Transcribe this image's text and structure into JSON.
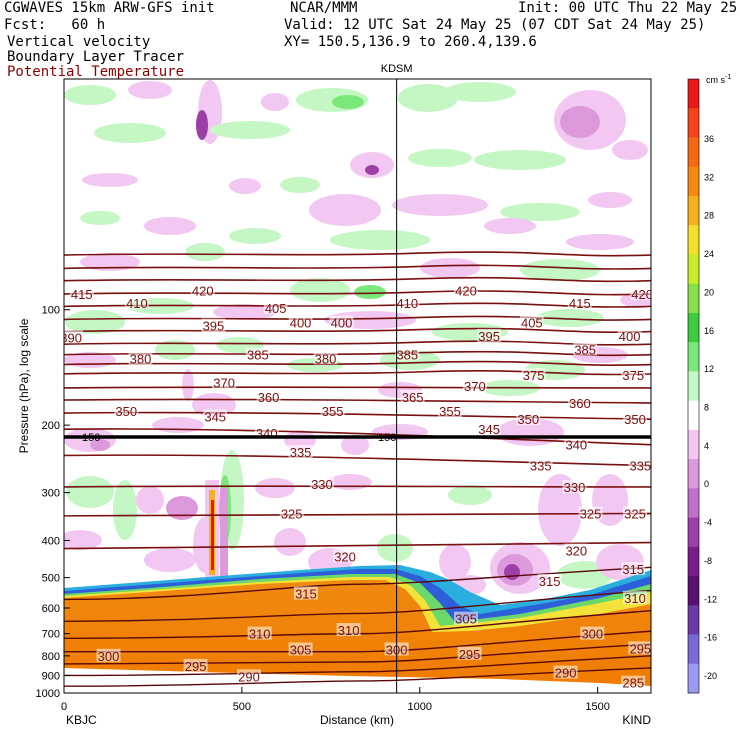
{
  "header": {
    "model": "CGWAVES 15km ARW-GFS init",
    "center": "NCAR/MMM",
    "init": "Init: 00 UTC Thu 22 May 25",
    "fcst": "Fcst:   60 h",
    "valid": "Valid: 12 UTC Sat 24 May 25 (07 CDT Sat 24 May 25)",
    "field1": "Vertical velocity",
    "xy": "XY= 150.5,136.9 to 260.4,139.6",
    "field2": "Boundary Layer Tracer",
    "field3": "Potential Temperature"
  },
  "chart_data": {
    "type": "heatmap",
    "title": "KDSM",
    "xlabel": "Distance (km)",
    "ylabel": "Pressure (hPa), log scale",
    "x_range": [
      0,
      1650
    ],
    "y_range_hpa": [
      1000,
      25
    ],
    "y_scale": "log",
    "x_ticks": [
      "0",
      "500",
      "1000",
      "1500"
    ],
    "y_ticks": [
      "100",
      "200",
      "300",
      "400",
      "500",
      "600",
      "700",
      "800",
      "900",
      "1000"
    ],
    "left_station": "KBJC",
    "right_station": "KIND",
    "marker_label": "KDSM",
    "marker_x_km": 935,
    "tropopause_label": "150",
    "colorbar": {
      "units": "cm s",
      "units_exp": "-1",
      "ticks": [
        "36",
        "32",
        "28",
        "24",
        "20",
        "16",
        "12",
        "8",
        "4",
        "0",
        "-4",
        "-8",
        "-12",
        "-16",
        "-20"
      ]
    },
    "theta_labels": [
      {
        "v": "415",
        "x": 50,
        "p": 91
      },
      {
        "v": "410",
        "x": 205,
        "p": 96
      },
      {
        "v": "420",
        "x": 390,
        "p": 89
      },
      {
        "v": "405",
        "x": 595,
        "p": 99
      },
      {
        "v": "410",
        "x": 965,
        "p": 96
      },
      {
        "v": "420",
        "x": 1130,
        "p": 89
      },
      {
        "v": "415",
        "x": 1450,
        "p": 96
      },
      {
        "v": "420",
        "x": 1625,
        "p": 91
      },
      {
        "v": "390",
        "x": 20,
        "p": 118
      },
      {
        "v": "395",
        "x": 420,
        "p": 110
      },
      {
        "v": "400",
        "x": 665,
        "p": 108
      },
      {
        "v": "400",
        "x": 780,
        "p": 108
      },
      {
        "v": "395",
        "x": 1195,
        "p": 117
      },
      {
        "v": "405",
        "x": 1315,
        "p": 108
      },
      {
        "v": "385",
        "x": 1465,
        "p": 127
      },
      {
        "v": "400",
        "x": 1590,
        "p": 117
      },
      {
        "v": "380",
        "x": 215,
        "p": 134
      },
      {
        "v": "385",
        "x": 545,
        "p": 131
      },
      {
        "v": "380",
        "x": 735,
        "p": 134
      },
      {
        "v": "385",
        "x": 965,
        "p": 131
      },
      {
        "v": "375",
        "x": 1320,
        "p": 148
      },
      {
        "v": "375",
        "x": 1600,
        "p": 148
      },
      {
        "v": "370",
        "x": 450,
        "p": 155
      },
      {
        "v": "370",
        "x": 1155,
        "p": 158
      },
      {
        "v": "360",
        "x": 575,
        "p": 169
      },
      {
        "v": "365",
        "x": 980,
        "p": 169
      },
      {
        "v": "360",
        "x": 1450,
        "p": 175
      },
      {
        "v": "350",
        "x": 175,
        "p": 184
      },
      {
        "v": "345",
        "x": 425,
        "p": 190
      },
      {
        "v": "355",
        "x": 755,
        "p": 184
      },
      {
        "v": "355",
        "x": 1085,
        "p": 184
      },
      {
        "v": "350",
        "x": 1305,
        "p": 193
      },
      {
        "v": "350",
        "x": 1605,
        "p": 193
      },
      {
        "v": "340",
        "x": 570,
        "p": 210
      },
      {
        "v": "345",
        "x": 1195,
        "p": 205
      },
      {
        "v": "340",
        "x": 1440,
        "p": 225
      },
      {
        "v": "335",
        "x": 665,
        "p": 235
      },
      {
        "v": "335",
        "x": 1340,
        "p": 255
      },
      {
        "v": "335",
        "x": 1620,
        "p": 255
      },
      {
        "v": "330",
        "x": 725,
        "p": 285
      },
      {
        "v": "330",
        "x": 1435,
        "p": 290
      },
      {
        "v": "325",
        "x": 640,
        "p": 340
      },
      {
        "v": "325",
        "x": 1480,
        "p": 340
      },
      {
        "v": "325",
        "x": 1605,
        "p": 340
      },
      {
        "v": "320",
        "x": 790,
        "p": 440
      },
      {
        "v": "320",
        "x": 1440,
        "p": 425
      },
      {
        "v": "315",
        "x": 680,
        "p": 550
      },
      {
        "v": "315",
        "x": 1365,
        "p": 510
      },
      {
        "v": "315",
        "x": 1600,
        "p": 475
      },
      {
        "v": "310",
        "x": 550,
        "p": 700
      },
      {
        "v": "310",
        "x": 800,
        "p": 685
      },
      {
        "v": "305",
        "x": 1130,
        "p": 640
      },
      {
        "v": "310",
        "x": 1605,
        "p": 565
      },
      {
        "v": "305",
        "x": 665,
        "p": 770
      },
      {
        "v": "300",
        "x": 1485,
        "p": 700
      },
      {
        "v": "300",
        "x": 125,
        "p": 800
      },
      {
        "v": "295",
        "x": 370,
        "p": 850
      },
      {
        "v": "300",
        "x": 935,
        "p": 770
      },
      {
        "v": "295",
        "x": 1140,
        "p": 790
      },
      {
        "v": "295",
        "x": 1620,
        "p": 765
      },
      {
        "v": "290",
        "x": 520,
        "p": 905
      },
      {
        "v": "290",
        "x": 1410,
        "p": 885
      },
      {
        "v": "285",
        "x": 1600,
        "p": 940
      }
    ]
  }
}
